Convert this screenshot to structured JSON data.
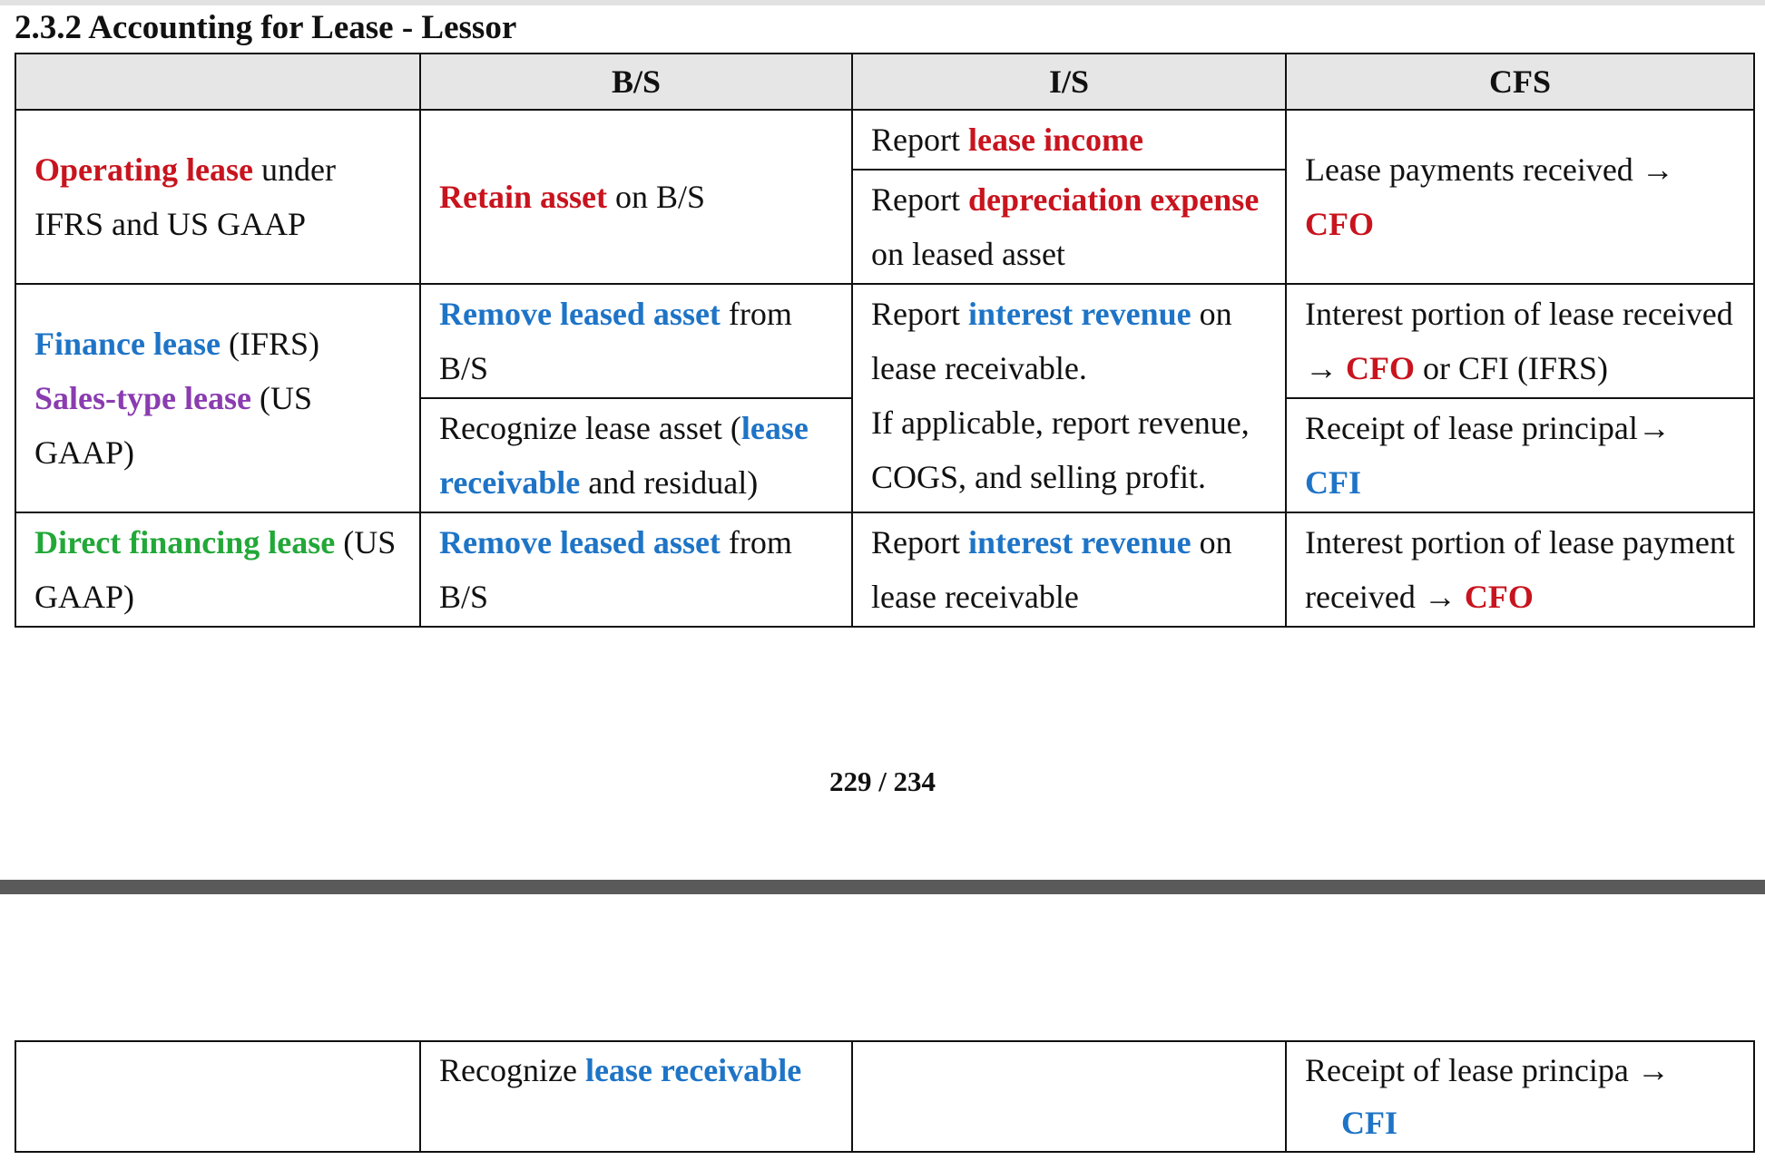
{
  "doc": {
    "title": "2.3.2 Accounting for Lease - Lessor",
    "columns": [
      "B/S",
      "I/S",
      "CFS"
    ],
    "operating": {
      "label_red": "Operating lease",
      "label_rest": " under IFRS and US GAAP",
      "bs_red": "Retain asset",
      "bs_rest": " on B/S",
      "is1_pre": "Report ",
      "is1_red": "lease income",
      "is2_pre": "Report ",
      "is2_red": "depreciation expense",
      "is2_rest": " on leased asset",
      "cfs_text": "Lease payments received → ",
      "cfs_red": "CFO"
    },
    "finance": {
      "label_blue": "Finance lease",
      "label_blue_rest": " (IFRS)",
      "label_purple": "Sales-type lease",
      "label_purple_rest": " (US GAAP)",
      "bs1_blue": "Remove leased asset",
      "bs1_rest": " from B/S",
      "bs2_pre": "Recognize lease asset (",
      "bs2_blue": "lease receivable",
      "bs2_rest": " and residual)",
      "is_pre": "Report ",
      "is_blue": "interest revenue",
      "is_rest": " on lease receivable.",
      "is_extra": "If applicable, report revenue, COGS, and selling profit.",
      "cfs1_pre": "Interest portion of lease received → ",
      "cfs1_red": "CFO",
      "cfs1_rest": " or CFI (IFRS)",
      "cfs2_pre": "Receipt of lease principal→",
      "cfs2_blue": "CFI"
    },
    "direct": {
      "label_green": "Direct financing lease",
      "label_rest": " (US GAAP)",
      "bs_blue": "Remove leased asset",
      "bs_rest": " from B/S",
      "is_pre": "Report ",
      "is_blue": "interest revenue",
      "is_rest": " on lease receivable",
      "cfs_pre": "Interest portion of lease payment received → ",
      "cfs_red": "CFO"
    },
    "page_number": "229  /  234",
    "next_page": {
      "bs_pre": "Recognize ",
      "bs_blue": "lease receivable",
      "cfs_pre": "Receipt of lease principa →",
      "cfs_blue": "CFI"
    }
  }
}
